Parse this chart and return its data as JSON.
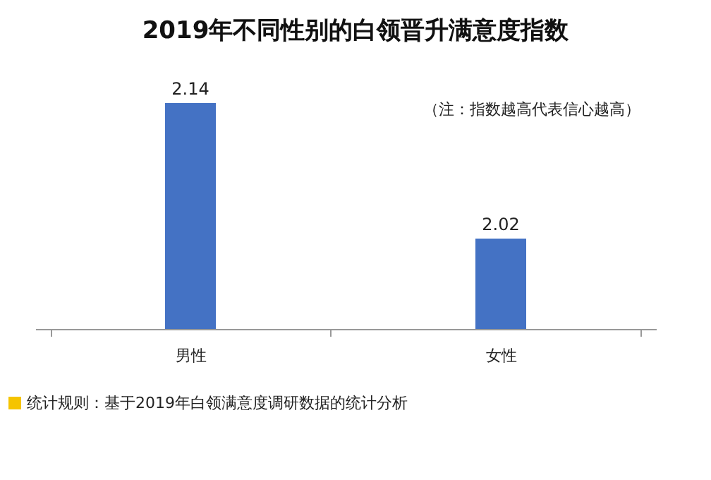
{
  "chart_data": {
    "type": "bar",
    "title": "2019年不同性别的白领晋升满意度指数",
    "categories": [
      "男性",
      "女性"
    ],
    "values": [
      2.14,
      2.02
    ],
    "color": "#4472c4",
    "ylim": [
      1.94,
      2.14
    ],
    "data_labels": true,
    "annotations": [
      "（注：指数越高代表信心越高）",
      "统计规则：基于2019年白领满意度调研数据的统计分析"
    ]
  }
}
